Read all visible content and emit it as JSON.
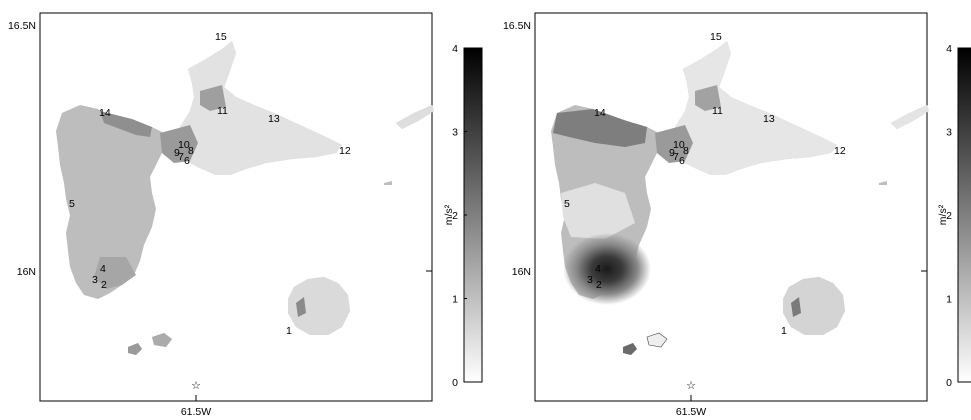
{
  "maps": [
    {
      "lat_ticks": [
        "16.5N",
        "16N"
      ],
      "lon_tick": "61.5W",
      "site_labels": [
        "1",
        "2",
        "3",
        "4",
        "5",
        "6",
        "7",
        "8",
        "9",
        "10",
        "11",
        "12",
        "13",
        "14",
        "15"
      ],
      "colorbar": {
        "unit": "m/s²",
        "ticks": [
          "0",
          "1",
          "2",
          "3",
          "4"
        ]
      }
    },
    {
      "lat_ticks": [
        "16.5N",
        "16N"
      ],
      "lon_tick": "61.5W",
      "site_labels": [
        "1",
        "2",
        "3",
        "4",
        "5",
        "6",
        "7",
        "8",
        "9",
        "10",
        "11",
        "12",
        "13",
        "14",
        "15"
      ],
      "colorbar": {
        "unit": "m/s²",
        "ticks": [
          "0",
          "1",
          "2",
          "3",
          "4"
        ]
      }
    }
  ],
  "epicenter_icon": "star-icon",
  "colors": {
    "low": "#ffffff",
    "high": "#000000",
    "island_light": "#e4e4e4",
    "island_mid": "#c2c2c2",
    "island_dark": "#8c8c8c",
    "hot_spot": "#2a2a2a"
  }
}
